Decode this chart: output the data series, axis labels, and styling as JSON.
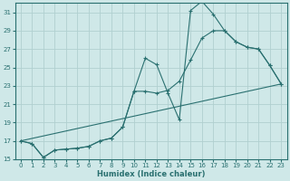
{
  "xlabel": "Humidex (Indice chaleur)",
  "ylabel": "",
  "background_color": "#cfe8e8",
  "grid_color": "#b0d0d0",
  "line_color": "#2a7070",
  "xlim": [
    -0.5,
    23.5
  ],
  "ylim": [
    15,
    32
  ],
  "xticks": [
    0,
    1,
    2,
    3,
    4,
    5,
    6,
    7,
    8,
    9,
    10,
    11,
    12,
    13,
    14,
    15,
    16,
    17,
    18,
    19,
    20,
    21,
    22,
    23
  ],
  "yticks": [
    15,
    17,
    19,
    21,
    23,
    25,
    27,
    29,
    31
  ],
  "line1_x": [
    0,
    1,
    2,
    3,
    4,
    5,
    6,
    7,
    8,
    9,
    10,
    11,
    12,
    13,
    14,
    15,
    16,
    17,
    18,
    19,
    20,
    21,
    22,
    23
  ],
  "line1_y": [
    17.0,
    16.7,
    15.2,
    16.0,
    16.1,
    16.2,
    16.4,
    17.0,
    17.3,
    18.5,
    22.4,
    26.0,
    25.3,
    22.2,
    19.3,
    31.2,
    32.2,
    30.8,
    29.0,
    27.8,
    27.2,
    27.0,
    25.2,
    23.2
  ],
  "line2_x": [
    0,
    1,
    2,
    3,
    4,
    5,
    6,
    7,
    8,
    9,
    10,
    11,
    12,
    13,
    14,
    15,
    16,
    17,
    18,
    19,
    20,
    21,
    22,
    23
  ],
  "line2_y": [
    17.0,
    16.7,
    15.2,
    16.0,
    16.1,
    16.2,
    16.4,
    17.0,
    17.3,
    18.5,
    22.4,
    22.4,
    22.2,
    22.5,
    23.5,
    25.8,
    28.2,
    29.0,
    29.0,
    27.8,
    27.2,
    27.0,
    25.2,
    23.2
  ],
  "line3_x": [
    0,
    23
  ],
  "line3_y": [
    17.0,
    23.2
  ]
}
